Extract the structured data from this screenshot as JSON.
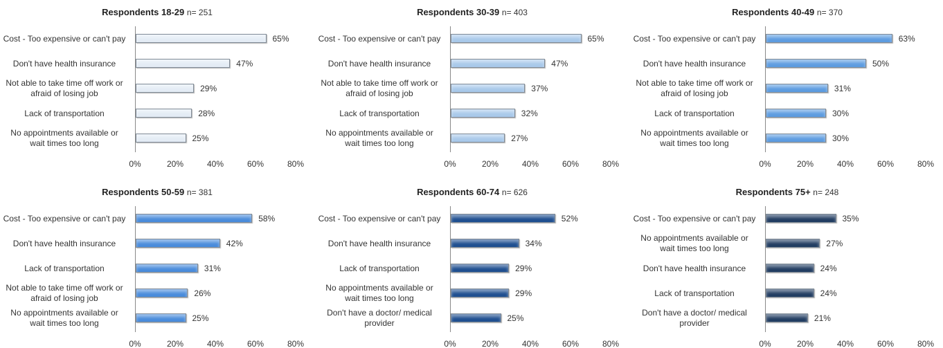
{
  "chart_data": [
    {
      "type": "bar",
      "title": "Respondents 18-29",
      "subtitle": "n= 251",
      "color": "#e4ecf5",
      "categories": [
        "Cost - Too expensive or can't pay",
        "Don't have health insurance",
        "Not able to take time off work or afraid of losing job",
        "Lack of transportation",
        "No appointments available or wait times too long"
      ],
      "values": [
        65,
        47,
        29,
        28,
        25
      ],
      "value_labels": [
        "65%",
        "47%",
        "29%",
        "28%",
        "25%"
      ],
      "xlim": [
        0,
        80
      ],
      "xticks": [
        {
          "value": 0,
          "label": "0%"
        },
        {
          "value": 20,
          "label": "20%"
        },
        {
          "value": 40,
          "label": "40%"
        },
        {
          "value": 60,
          "label": "60%"
        },
        {
          "value": 80,
          "label": "80%"
        }
      ]
    },
    {
      "type": "bar",
      "title": "Respondents 30-39",
      "subtitle": "n= 403",
      "color": "#a9c9ea",
      "categories": [
        "Cost - Too expensive or can't pay",
        "Don't have health insurance",
        "Not able to take time off work or afraid of losing job",
        "Lack of transportation",
        "No appointments available or wait times too long"
      ],
      "values": [
        65,
        47,
        37,
        32,
        27
      ],
      "value_labels": [
        "65%",
        "47%",
        "37%",
        "32%",
        "27%"
      ],
      "xlim": [
        0,
        80
      ],
      "xticks": [
        {
          "value": 0,
          "label": "0%"
        },
        {
          "value": 20,
          "label": "20%"
        },
        {
          "value": 40,
          "label": "40%"
        },
        {
          "value": 60,
          "label": "60%"
        },
        {
          "value": 80,
          "label": "80%"
        }
      ]
    },
    {
      "type": "bar",
      "title": "Respondents 40-49",
      "subtitle": "n= 370",
      "color": "#5d9ce0",
      "categories": [
        "Cost - Too expensive or can't pay",
        "Don't have health insurance",
        "Not able to take time off work or afraid of losing job",
        "Lack of transportation",
        "No appointments available or wait times too long"
      ],
      "values": [
        63,
        50,
        31,
        30,
        30
      ],
      "value_labels": [
        "63%",
        "50%",
        "31%",
        "30%",
        "30%"
      ],
      "xlim": [
        0,
        80
      ],
      "xticks": [
        {
          "value": 0,
          "label": "0%"
        },
        {
          "value": 20,
          "label": "20%"
        },
        {
          "value": 40,
          "label": "40%"
        },
        {
          "value": 60,
          "label": "60%"
        },
        {
          "value": 80,
          "label": "80%"
        }
      ]
    },
    {
      "type": "bar",
      "title": "Respondents 50-59",
      "subtitle": "n= 381",
      "color": "#4a8cdb",
      "categories": [
        "Cost - Too expensive or can't pay",
        "Don't have health insurance",
        "Lack of transportation",
        "Not able to take time off work or afraid of losing job",
        "No appointments available or wait times too long"
      ],
      "values": [
        58,
        42,
        31,
        26,
        25
      ],
      "value_labels": [
        "58%",
        "42%",
        "31%",
        "26%",
        "25%"
      ],
      "xlim": [
        0,
        80
      ],
      "xticks": [
        {
          "value": 0,
          "label": "0%"
        },
        {
          "value": 20,
          "label": "20%"
        },
        {
          "value": 40,
          "label": "40%"
        },
        {
          "value": 60,
          "label": "60%"
        },
        {
          "value": 80,
          "label": "80%"
        }
      ]
    },
    {
      "type": "bar",
      "title": "Respondents 60-74",
      "subtitle": "n= 626",
      "color": "#1f4f90",
      "categories": [
        "Cost - Too expensive or can't pay",
        "Don't have health insurance",
        "Lack of transportation",
        "No appointments available or wait times too long",
        "Don't have a doctor/ medical provider"
      ],
      "values": [
        52,
        34,
        29,
        29,
        25
      ],
      "value_labels": [
        "52%",
        "34%",
        "29%",
        "29%",
        "25%"
      ],
      "xlim": [
        0,
        80
      ],
      "xticks": [
        {
          "value": 0,
          "label": "0%"
        },
        {
          "value": 20,
          "label": "20%"
        },
        {
          "value": 40,
          "label": "40%"
        },
        {
          "value": 60,
          "label": "60%"
        },
        {
          "value": 80,
          "label": "80%"
        }
      ]
    },
    {
      "type": "bar",
      "title": "Respondents 75+",
      "subtitle": "n= 248",
      "color": "#223d62",
      "categories": [
        "Cost - Too expensive or can't pay",
        "No appointments available or wait times too long",
        "Don't have health insurance",
        "Lack of transportation",
        "Don't have a doctor/ medical provider"
      ],
      "values": [
        35,
        27,
        24,
        24,
        21
      ],
      "value_labels": [
        "35%",
        "27%",
        "24%",
        "24%",
        "21%"
      ],
      "xlim": [
        0,
        80
      ],
      "xticks": [
        {
          "value": 0,
          "label": "0%"
        },
        {
          "value": 20,
          "label": "20%"
        },
        {
          "value": 40,
          "label": "40%"
        },
        {
          "value": 60,
          "label": "60%"
        },
        {
          "value": 80,
          "label": "80%"
        }
      ]
    }
  ]
}
